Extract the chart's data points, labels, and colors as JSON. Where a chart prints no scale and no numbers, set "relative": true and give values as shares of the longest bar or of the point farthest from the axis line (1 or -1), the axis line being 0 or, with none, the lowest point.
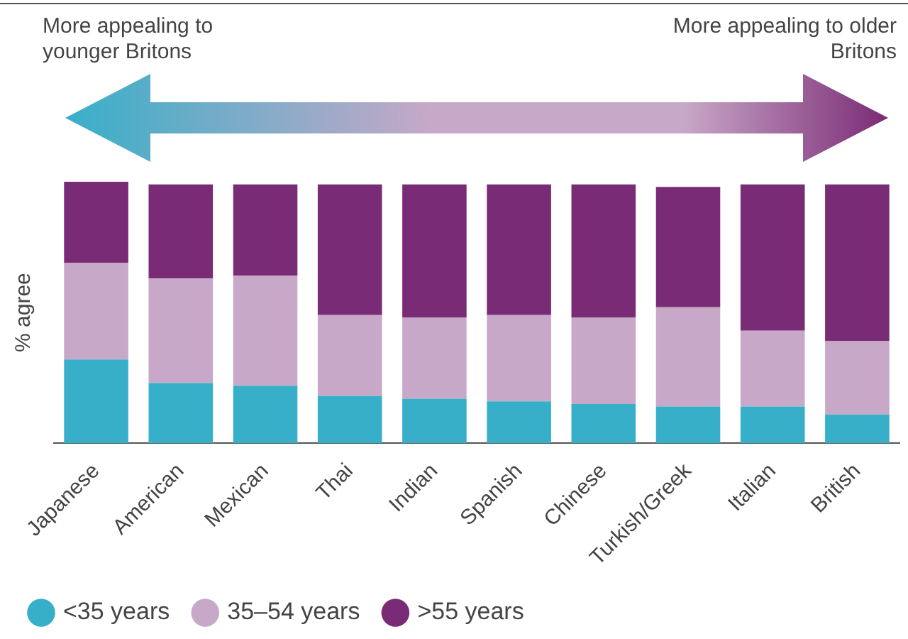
{
  "chart_data": {
    "type": "bar",
    "stacked": true,
    "relative": true,
    "ylabel": "% agree",
    "legend": "bottom",
    "grid": false,
    "annotations": [
      "More appealing to younger Britons",
      "More appealing to older Britons"
    ],
    "categories": [
      "Japanese",
      "American",
      "Mexican",
      "Thai",
      "Indian",
      "Spanish",
      "Chinese",
      "Turkish/Greek",
      "Italian",
      "British"
    ],
    "series": [
      {
        "name": "<35 years",
        "color": "#38afc8",
        "values": [
          0.32,
          0.23,
          0.22,
          0.18,
          0.17,
          0.16,
          0.15,
          0.14,
          0.14,
          0.11
        ]
      },
      {
        "name": "35–54 years",
        "color": "#c8a8c8",
        "values": [
          0.37,
          0.4,
          0.42,
          0.31,
          0.31,
          0.33,
          0.33,
          0.38,
          0.29,
          0.28
        ]
      },
      {
        "name": ">55 years",
        "color": "#7a2b75",
        "values": [
          0.31,
          0.36,
          0.35,
          0.5,
          0.51,
          0.5,
          0.51,
          0.46,
          0.56,
          0.6
        ]
      }
    ]
  }
}
